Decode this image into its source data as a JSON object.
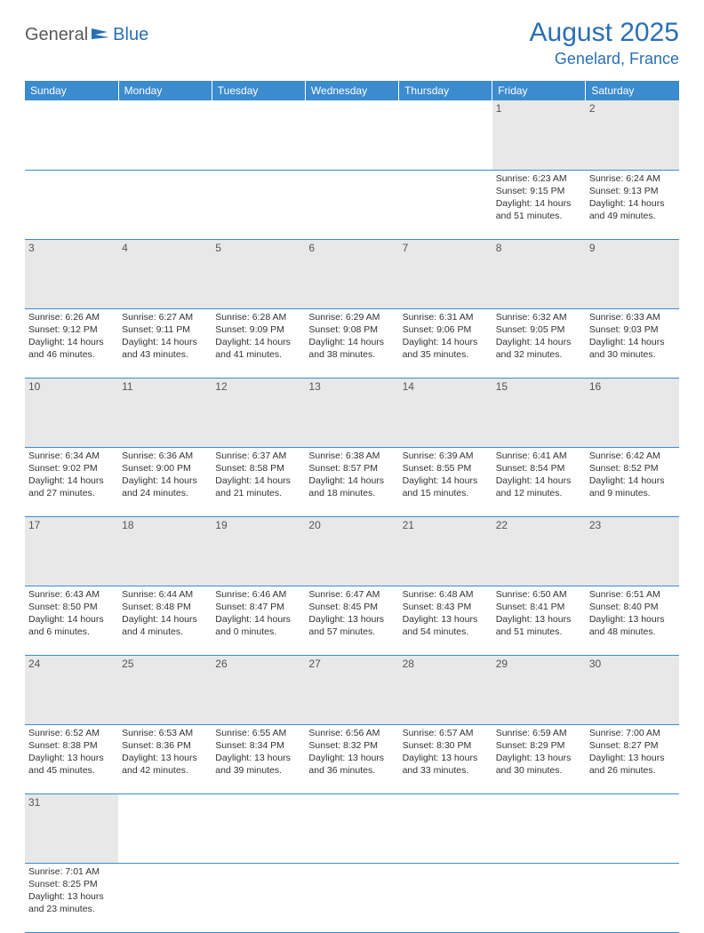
{
  "logo": {
    "word1": "General",
    "word2": "Blue"
  },
  "title": "August 2025",
  "location": "Genelard, France",
  "colors": {
    "header_bg": "#3b8bcf",
    "header_text": "#ffffff",
    "accent": "#2a6fb5",
    "daynum_bg": "#e8e8e8",
    "text": "#333333",
    "logo_gray": "#5a5a5a"
  },
  "weekdays": [
    "Sunday",
    "Monday",
    "Tuesday",
    "Wednesday",
    "Thursday",
    "Friday",
    "Saturday"
  ],
  "weeks": [
    [
      null,
      null,
      null,
      null,
      null,
      {
        "n": "1",
        "sunrise": "6:23 AM",
        "sunset": "9:15 PM",
        "dl1": "14 hours",
        "dl2": "and 51 minutes."
      },
      {
        "n": "2",
        "sunrise": "6:24 AM",
        "sunset": "9:13 PM",
        "dl1": "14 hours",
        "dl2": "and 49 minutes."
      }
    ],
    [
      {
        "n": "3",
        "sunrise": "6:26 AM",
        "sunset": "9:12 PM",
        "dl1": "14 hours",
        "dl2": "and 46 minutes."
      },
      {
        "n": "4",
        "sunrise": "6:27 AM",
        "sunset": "9:11 PM",
        "dl1": "14 hours",
        "dl2": "and 43 minutes."
      },
      {
        "n": "5",
        "sunrise": "6:28 AM",
        "sunset": "9:09 PM",
        "dl1": "14 hours",
        "dl2": "and 41 minutes."
      },
      {
        "n": "6",
        "sunrise": "6:29 AM",
        "sunset": "9:08 PM",
        "dl1": "14 hours",
        "dl2": "and 38 minutes."
      },
      {
        "n": "7",
        "sunrise": "6:31 AM",
        "sunset": "9:06 PM",
        "dl1": "14 hours",
        "dl2": "and 35 minutes."
      },
      {
        "n": "8",
        "sunrise": "6:32 AM",
        "sunset": "9:05 PM",
        "dl1": "14 hours",
        "dl2": "and 32 minutes."
      },
      {
        "n": "9",
        "sunrise": "6:33 AM",
        "sunset": "9:03 PM",
        "dl1": "14 hours",
        "dl2": "and 30 minutes."
      }
    ],
    [
      {
        "n": "10",
        "sunrise": "6:34 AM",
        "sunset": "9:02 PM",
        "dl1": "14 hours",
        "dl2": "and 27 minutes."
      },
      {
        "n": "11",
        "sunrise": "6:36 AM",
        "sunset": "9:00 PM",
        "dl1": "14 hours",
        "dl2": "and 24 minutes."
      },
      {
        "n": "12",
        "sunrise": "6:37 AM",
        "sunset": "8:58 PM",
        "dl1": "14 hours",
        "dl2": "and 21 minutes."
      },
      {
        "n": "13",
        "sunrise": "6:38 AM",
        "sunset": "8:57 PM",
        "dl1": "14 hours",
        "dl2": "and 18 minutes."
      },
      {
        "n": "14",
        "sunrise": "6:39 AM",
        "sunset": "8:55 PM",
        "dl1": "14 hours",
        "dl2": "and 15 minutes."
      },
      {
        "n": "15",
        "sunrise": "6:41 AM",
        "sunset": "8:54 PM",
        "dl1": "14 hours",
        "dl2": "and 12 minutes."
      },
      {
        "n": "16",
        "sunrise": "6:42 AM",
        "sunset": "8:52 PM",
        "dl1": "14 hours",
        "dl2": "and 9 minutes."
      }
    ],
    [
      {
        "n": "17",
        "sunrise": "6:43 AM",
        "sunset": "8:50 PM",
        "dl1": "14 hours",
        "dl2": "and 6 minutes."
      },
      {
        "n": "18",
        "sunrise": "6:44 AM",
        "sunset": "8:48 PM",
        "dl1": "14 hours",
        "dl2": "and 4 minutes."
      },
      {
        "n": "19",
        "sunrise": "6:46 AM",
        "sunset": "8:47 PM",
        "dl1": "14 hours",
        "dl2": "and 0 minutes."
      },
      {
        "n": "20",
        "sunrise": "6:47 AM",
        "sunset": "8:45 PM",
        "dl1": "13 hours",
        "dl2": "and 57 minutes."
      },
      {
        "n": "21",
        "sunrise": "6:48 AM",
        "sunset": "8:43 PM",
        "dl1": "13 hours",
        "dl2": "and 54 minutes."
      },
      {
        "n": "22",
        "sunrise": "6:50 AM",
        "sunset": "8:41 PM",
        "dl1": "13 hours",
        "dl2": "and 51 minutes."
      },
      {
        "n": "23",
        "sunrise": "6:51 AM",
        "sunset": "8:40 PM",
        "dl1": "13 hours",
        "dl2": "and 48 minutes."
      }
    ],
    [
      {
        "n": "24",
        "sunrise": "6:52 AM",
        "sunset": "8:38 PM",
        "dl1": "13 hours",
        "dl2": "and 45 minutes."
      },
      {
        "n": "25",
        "sunrise": "6:53 AM",
        "sunset": "8:36 PM",
        "dl1": "13 hours",
        "dl2": "and 42 minutes."
      },
      {
        "n": "26",
        "sunrise": "6:55 AM",
        "sunset": "8:34 PM",
        "dl1": "13 hours",
        "dl2": "and 39 minutes."
      },
      {
        "n": "27",
        "sunrise": "6:56 AM",
        "sunset": "8:32 PM",
        "dl1": "13 hours",
        "dl2": "and 36 minutes."
      },
      {
        "n": "28",
        "sunrise": "6:57 AM",
        "sunset": "8:30 PM",
        "dl1": "13 hours",
        "dl2": "and 33 minutes."
      },
      {
        "n": "29",
        "sunrise": "6:59 AM",
        "sunset": "8:29 PM",
        "dl1": "13 hours",
        "dl2": "and 30 minutes."
      },
      {
        "n": "30",
        "sunrise": "7:00 AM",
        "sunset": "8:27 PM",
        "dl1": "13 hours",
        "dl2": "and 26 minutes."
      }
    ],
    [
      {
        "n": "31",
        "sunrise": "7:01 AM",
        "sunset": "8:25 PM",
        "dl1": "13 hours",
        "dl2": "and 23 minutes."
      },
      null,
      null,
      null,
      null,
      null,
      null
    ]
  ],
  "labels": {
    "sunrise_prefix": "Sunrise: ",
    "sunset_prefix": "Sunset: ",
    "daylight_prefix": "Daylight: "
  }
}
